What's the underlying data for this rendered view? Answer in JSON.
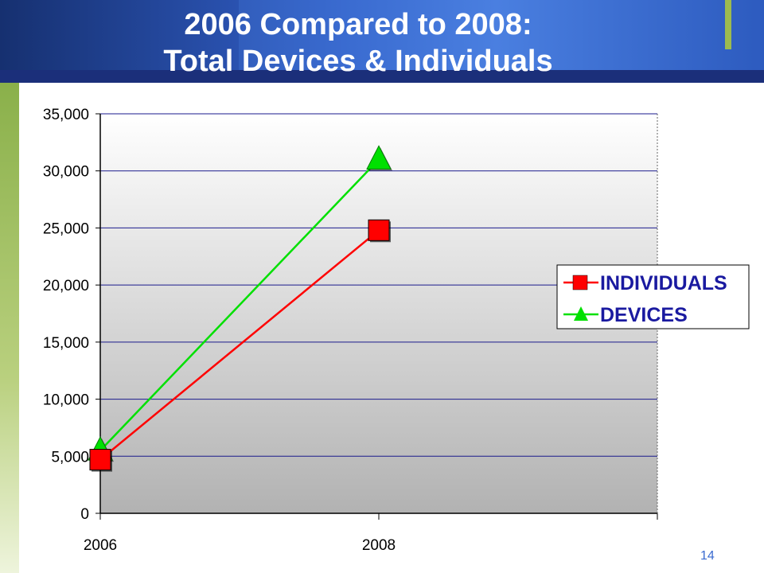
{
  "slide": {
    "title_line1": "2006 Compared to 2008:",
    "title_line2": "Total Devices & Individuals",
    "page_number": "14"
  },
  "colors": {
    "individuals": "#ff0000",
    "devices": "#00e000",
    "legend_text": "#1a1aa0",
    "plot_border": "#000000"
  },
  "chart_data": {
    "type": "line",
    "title": "",
    "xlabel": "",
    "ylabel": "",
    "x": [
      "2006",
      "2008"
    ],
    "ylim": [
      0,
      35000
    ],
    "yticks": [
      0,
      5000,
      10000,
      15000,
      20000,
      25000,
      30000,
      35000
    ],
    "ytick_labels": [
      "0",
      "5,000",
      "10,000",
      "15,000",
      "20,000",
      "25,000",
      "30,000",
      "35,000"
    ],
    "grid": true,
    "legend_position": "right",
    "series": [
      {
        "name": "INDIVIDUALS",
        "values": [
          4700,
          24800
        ],
        "color": "#ff0000",
        "marker": "square"
      },
      {
        "name": "DEVICES",
        "values": [
          5500,
          31000
        ],
        "color": "#00e000",
        "marker": "triangle"
      }
    ]
  }
}
